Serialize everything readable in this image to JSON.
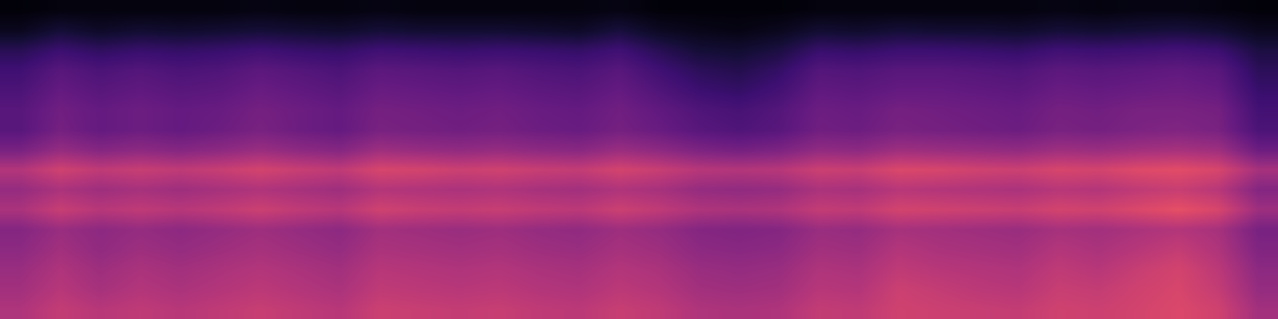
{
  "chart_data": {
    "type": "heatmap",
    "color": "magma",
    "tick_labels": false,
    "zlim": [
      0,
      1
    ],
    "cells": [
      [
        0.48,
        0.53,
        0.5,
        0.52,
        0.5,
        0.52,
        0.54,
        0.52,
        0.5,
        0.55,
        0.54,
        0.53,
        0.54,
        0.52,
        0.51,
        0.54,
        0.52,
        0.48,
        0.47,
        0.48,
        0.53,
        0.52,
        0.56,
        0.55,
        0.54,
        0.53,
        0.56,
        0.55,
        0.57,
        0.59,
        0.56,
        0.45
      ],
      [
        0.45,
        0.5,
        0.46,
        0.49,
        0.47,
        0.49,
        0.51,
        0.49,
        0.47,
        0.52,
        0.51,
        0.5,
        0.51,
        0.49,
        0.48,
        0.51,
        0.49,
        0.45,
        0.44,
        0.45,
        0.5,
        0.49,
        0.55,
        0.53,
        0.51,
        0.5,
        0.54,
        0.53,
        0.56,
        0.58,
        0.53,
        0.42
      ],
      [
        0.43,
        0.48,
        0.44,
        0.47,
        0.45,
        0.47,
        0.49,
        0.47,
        0.45,
        0.5,
        0.49,
        0.48,
        0.49,
        0.47,
        0.46,
        0.49,
        0.47,
        0.43,
        0.42,
        0.43,
        0.48,
        0.47,
        0.52,
        0.5,
        0.49,
        0.48,
        0.52,
        0.5,
        0.54,
        0.57,
        0.51,
        0.4
      ],
      [
        0.4,
        0.45,
        0.41,
        0.44,
        0.42,
        0.44,
        0.46,
        0.44,
        0.42,
        0.47,
        0.46,
        0.45,
        0.46,
        0.44,
        0.43,
        0.46,
        0.44,
        0.4,
        0.39,
        0.4,
        0.45,
        0.44,
        0.49,
        0.47,
        0.46,
        0.45,
        0.49,
        0.47,
        0.5,
        0.53,
        0.48,
        0.37
      ],
      [
        0.38,
        0.43,
        0.4,
        0.42,
        0.4,
        0.42,
        0.44,
        0.42,
        0.4,
        0.45,
        0.44,
        0.43,
        0.44,
        0.42,
        0.41,
        0.44,
        0.42,
        0.38,
        0.37,
        0.38,
        0.43,
        0.42,
        0.46,
        0.45,
        0.44,
        0.43,
        0.46,
        0.45,
        0.47,
        0.49,
        0.46,
        0.35
      ],
      [
        0.47,
        0.54,
        0.5,
        0.52,
        0.5,
        0.52,
        0.55,
        0.52,
        0.5,
        0.56,
        0.54,
        0.53,
        0.54,
        0.52,
        0.51,
        0.55,
        0.52,
        0.48,
        0.47,
        0.48,
        0.53,
        0.52,
        0.57,
        0.56,
        0.55,
        0.54,
        0.57,
        0.56,
        0.59,
        0.62,
        0.58,
        0.44
      ],
      [
        0.42,
        0.47,
        0.44,
        0.46,
        0.44,
        0.46,
        0.48,
        0.46,
        0.44,
        0.49,
        0.48,
        0.47,
        0.48,
        0.46,
        0.45,
        0.48,
        0.46,
        0.42,
        0.41,
        0.42,
        0.47,
        0.46,
        0.5,
        0.49,
        0.48,
        0.47,
        0.5,
        0.49,
        0.52,
        0.54,
        0.5,
        0.38
      ],
      [
        0.49,
        0.56,
        0.52,
        0.54,
        0.52,
        0.54,
        0.57,
        0.54,
        0.52,
        0.58,
        0.57,
        0.55,
        0.56,
        0.54,
        0.53,
        0.57,
        0.54,
        0.5,
        0.49,
        0.5,
        0.55,
        0.54,
        0.59,
        0.58,
        0.56,
        0.55,
        0.58,
        0.57,
        0.6,
        0.61,
        0.58,
        0.46
      ],
      [
        0.35,
        0.42,
        0.38,
        0.4,
        0.38,
        0.4,
        0.43,
        0.4,
        0.38,
        0.44,
        0.42,
        0.41,
        0.42,
        0.4,
        0.39,
        0.43,
        0.4,
        0.36,
        0.34,
        0.36,
        0.41,
        0.4,
        0.44,
        0.43,
        0.42,
        0.41,
        0.44,
        0.43,
        0.45,
        0.46,
        0.44,
        0.32
      ],
      [
        0.27,
        0.34,
        0.3,
        0.32,
        0.3,
        0.32,
        0.35,
        0.32,
        0.3,
        0.35,
        0.34,
        0.33,
        0.34,
        0.32,
        0.31,
        0.34,
        0.31,
        0.27,
        0.25,
        0.27,
        0.33,
        0.32,
        0.35,
        0.34,
        0.33,
        0.32,
        0.35,
        0.34,
        0.36,
        0.37,
        0.35,
        0.24
      ],
      [
        0.27,
        0.33,
        0.3,
        0.32,
        0.3,
        0.31,
        0.34,
        0.32,
        0.3,
        0.34,
        0.33,
        0.32,
        0.33,
        0.31,
        0.3,
        0.33,
        0.29,
        0.25,
        0.23,
        0.26,
        0.32,
        0.31,
        0.34,
        0.33,
        0.32,
        0.31,
        0.34,
        0.33,
        0.35,
        0.35,
        0.34,
        0.22
      ],
      [
        0.24,
        0.3,
        0.27,
        0.29,
        0.27,
        0.28,
        0.31,
        0.29,
        0.27,
        0.31,
        0.3,
        0.29,
        0.3,
        0.28,
        0.27,
        0.3,
        0.25,
        0.2,
        0.18,
        0.22,
        0.29,
        0.28,
        0.3,
        0.3,
        0.29,
        0.28,
        0.31,
        0.3,
        0.31,
        0.32,
        0.3,
        0.19
      ],
      [
        0.21,
        0.27,
        0.24,
        0.26,
        0.24,
        0.25,
        0.28,
        0.26,
        0.24,
        0.28,
        0.27,
        0.26,
        0.27,
        0.25,
        0.24,
        0.27,
        0.21,
        0.16,
        0.14,
        0.18,
        0.26,
        0.25,
        0.27,
        0.27,
        0.26,
        0.25,
        0.28,
        0.27,
        0.28,
        0.29,
        0.27,
        0.16
      ],
      [
        0.15,
        0.2,
        0.17,
        0.19,
        0.18,
        0.19,
        0.21,
        0.19,
        0.18,
        0.21,
        0.2,
        0.19,
        0.2,
        0.19,
        0.18,
        0.21,
        0.15,
        0.1,
        0.09,
        0.12,
        0.19,
        0.18,
        0.2,
        0.2,
        0.19,
        0.18,
        0.21,
        0.2,
        0.21,
        0.22,
        0.2,
        0.12
      ],
      [
        0.05,
        0.1,
        0.07,
        0.09,
        0.08,
        0.09,
        0.1,
        0.09,
        0.08,
        0.1,
        0.09,
        0.09,
        0.09,
        0.08,
        0.07,
        0.11,
        0.06,
        0.04,
        0.03,
        0.05,
        0.09,
        0.08,
        0.1,
        0.09,
        0.09,
        0.08,
        0.1,
        0.09,
        0.1,
        0.11,
        0.09,
        0.05
      ],
      [
        0.01,
        0.02,
        0.02,
        0.02,
        0.02,
        0.02,
        0.03,
        0.02,
        0.02,
        0.03,
        0.02,
        0.02,
        0.02,
        0.02,
        0.02,
        0.03,
        0.01,
        0.01,
        0.01,
        0.01,
        0.02,
        0.02,
        0.02,
        0.02,
        0.02,
        0.02,
        0.03,
        0.02,
        0.03,
        0.03,
        0.02,
        0.01
      ]
    ]
  }
}
